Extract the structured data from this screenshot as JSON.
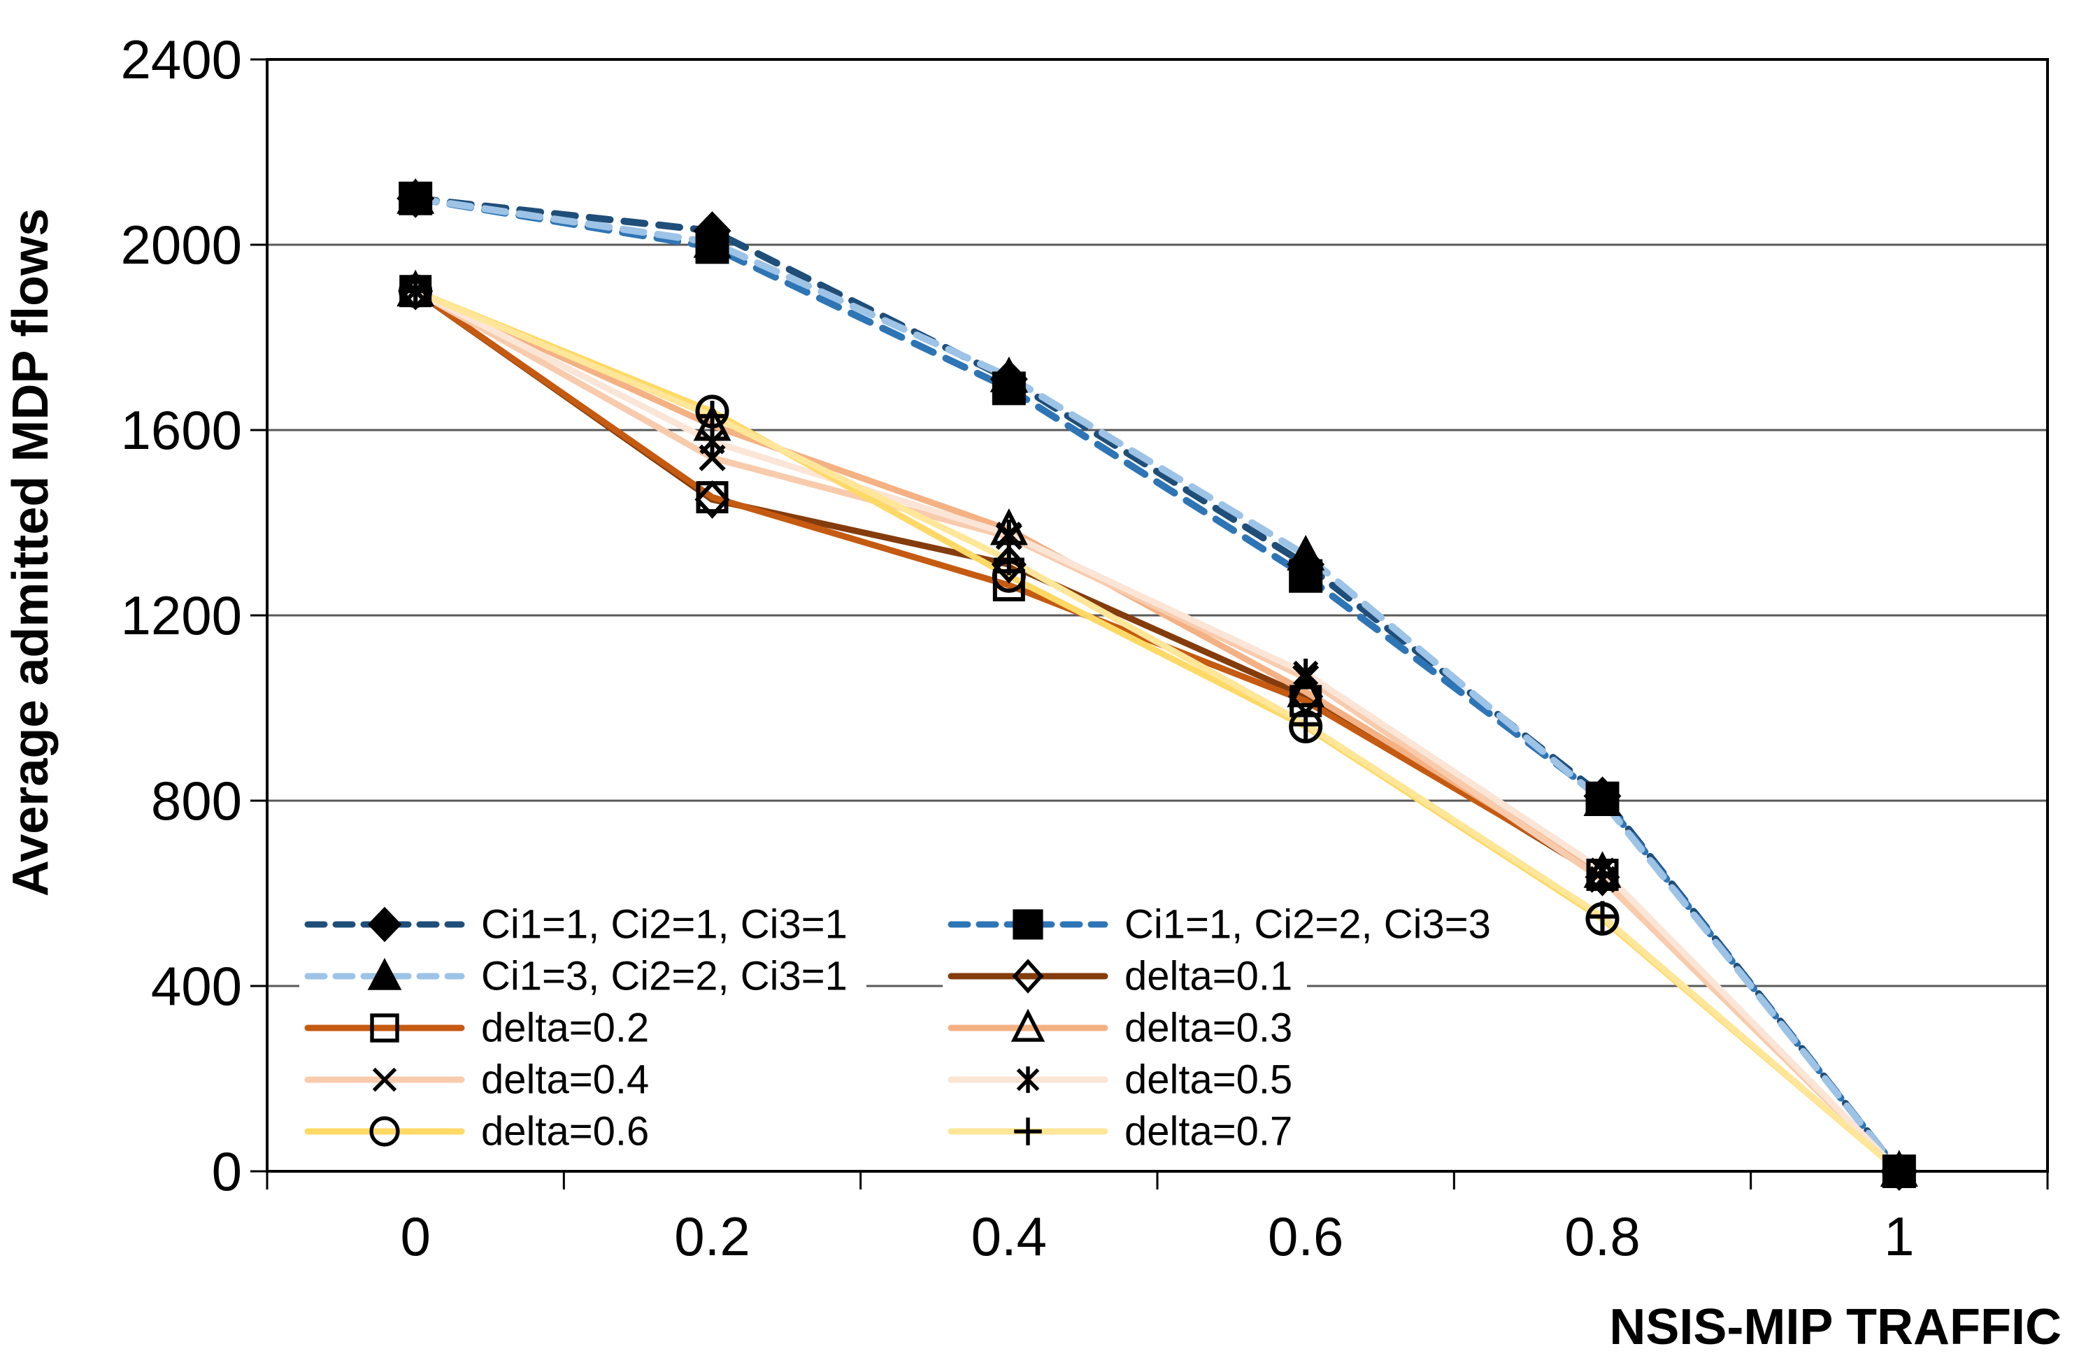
{
  "chart_data": {
    "type": "line",
    "title": "",
    "xlabel": "NSIS-MIP TRAFFIC",
    "ylabel": "Average admitted MDP flows",
    "x_categories": [
      "0",
      "0.2",
      "0.4",
      "0.6",
      "0.8",
      "1"
    ],
    "x_values": [
      0,
      0.2,
      0.4,
      0.6,
      0.8,
      1
    ],
    "y_ticks": [
      "0",
      "400",
      "800",
      "1200",
      "1600",
      "2000",
      "2400"
    ],
    "ylim": [
      0,
      2400
    ],
    "grid": true,
    "gridline_color": "#595959",
    "axis_color": "#000000",
    "legend_position": "inside-bottom-left-two-columns",
    "series": [
      {
        "name": "Ci1=1, Ci2=1, Ci3=1",
        "color": "#1F4E79",
        "style": "dashed",
        "marker": "diamond-filled",
        "values": [
          2100,
          2030,
          1710,
          1310,
          810,
          0
        ]
      },
      {
        "name": "Ci1=1, Ci2=2, Ci3=3",
        "color": "#2E75B6",
        "style": "dashed",
        "marker": "square-filled",
        "values": [
          2100,
          1995,
          1690,
          1285,
          805,
          0
        ]
      },
      {
        "name": "Ci1=3, Ci2=2, Ci3=1",
        "color": "#9DC3E6",
        "style": "dashed",
        "marker": "triangle-filled",
        "values": [
          2100,
          2005,
          1715,
          1330,
          800,
          0
        ]
      },
      {
        "name": "delta=0.1",
        "color": "#843C0C",
        "style": "solid",
        "marker": "diamond-open",
        "values": [
          1900,
          1450,
          1310,
          1025,
          635,
          0
        ]
      },
      {
        "name": "delta=0.2",
        "color": "#C55A11",
        "style": "solid",
        "marker": "square-open",
        "values": [
          1900,
          1455,
          1265,
          1015,
          640,
          0
        ]
      },
      {
        "name": "delta=0.3",
        "color": "#F4B183",
        "style": "solid",
        "marker": "triangle-open",
        "values": [
          1900,
          1610,
          1385,
          1035,
          645,
          0
        ]
      },
      {
        "name": "delta=0.4",
        "color": "#F8CBAD",
        "style": "solid",
        "marker": "x",
        "values": [
          1900,
          1540,
          1370,
          1065,
          630,
          0
        ]
      },
      {
        "name": "delta=0.5",
        "color": "#FBE5D6",
        "style": "solid",
        "marker": "star",
        "values": [
          1900,
          1575,
          1375,
          1075,
          650,
          0
        ]
      },
      {
        "name": "delta=0.6",
        "color": "#FFD966",
        "style": "solid",
        "marker": "circle-open",
        "values": [
          1900,
          1640,
          1285,
          960,
          545,
          0
        ]
      },
      {
        "name": "delta=0.7",
        "color": "#FFE699",
        "style": "solid",
        "marker": "plus",
        "values": [
          1900,
          1630,
          1320,
          965,
          550,
          0
        ]
      }
    ]
  }
}
